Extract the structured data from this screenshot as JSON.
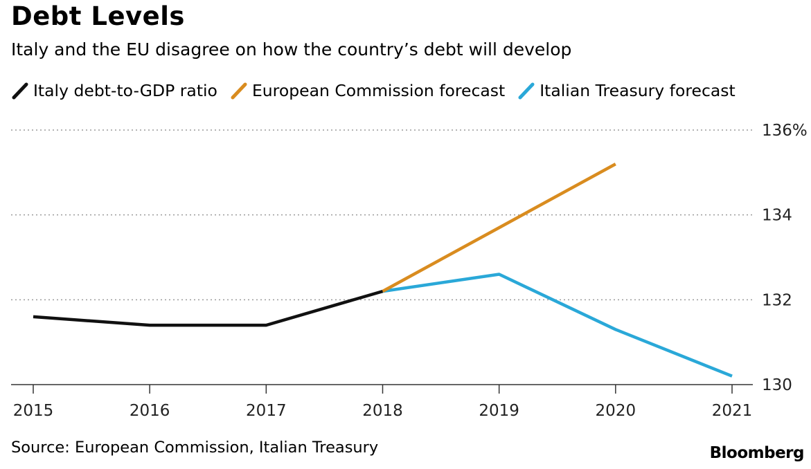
{
  "header": {
    "title": "Debt Levels",
    "subtitle": "Italy and the EU disagree on how the country’s debt will develop"
  },
  "footer": {
    "source": "Source: European Commission, Italian Treasury",
    "brand": "Bloomberg"
  },
  "chart_data": {
    "type": "line",
    "title": "Debt Levels",
    "subtitle": "Italy and the EU disagree on how the country’s debt will develop",
    "xlabel": "",
    "ylabel": "",
    "x": [
      2015,
      2016,
      2017,
      2018,
      2019,
      2020,
      2021
    ],
    "x_tick_labels": [
      "2015",
      "2016",
      "2017",
      "2018",
      "2019",
      "2020",
      "2021"
    ],
    "y_ticks": [
      130,
      132,
      134,
      136
    ],
    "y_tick_labels": [
      "130",
      "132",
      "134",
      "136%"
    ],
    "ylim": [
      130,
      136
    ],
    "y_axis_position": "right",
    "grid": "horizontal dotted",
    "legend_position": "top",
    "series": [
      {
        "name": "Italy debt-to-GDP ratio",
        "color": "#111111",
        "points": [
          [
            2015,
            131.6
          ],
          [
            2016,
            131.4
          ],
          [
            2017,
            131.4
          ],
          [
            2018,
            132.2
          ]
        ]
      },
      {
        "name": "European Commission forecast",
        "color": "#d98c1f",
        "points": [
          [
            2018,
            132.2
          ],
          [
            2019,
            133.7
          ],
          [
            2020,
            135.2
          ]
        ]
      },
      {
        "name": "Italian Treasury forecast",
        "color": "#2aa8d8",
        "points": [
          [
            2018,
            132.2
          ],
          [
            2019,
            132.6
          ],
          [
            2020,
            131.3
          ],
          [
            2021,
            130.2
          ]
        ]
      }
    ]
  }
}
